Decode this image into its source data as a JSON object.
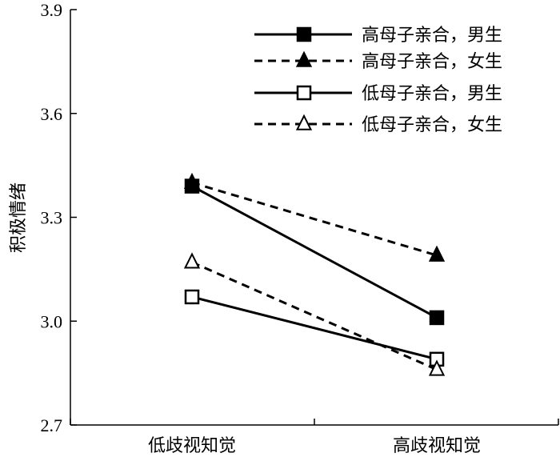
{
  "chart_data": {
    "type": "line",
    "title": "",
    "xlabel": "",
    "ylabel": "积极情绪",
    "categories": [
      "低歧视知觉",
      "高歧视知觉"
    ],
    "ylim": [
      2.7,
      3.9
    ],
    "yticks": [
      "2.7",
      "3.0",
      "3.3",
      "3.6",
      "3.9"
    ],
    "grid": false,
    "legend_position": "top-right",
    "series": [
      {
        "name": "高母子亲合，男生",
        "values": [
          3.39,
          3.01
        ],
        "line": "solid",
        "marker": "square",
        "filled": true
      },
      {
        "name": "高母子亲合，女生",
        "values": [
          3.4,
          3.19
        ],
        "line": "dashed",
        "marker": "triangle",
        "filled": true
      },
      {
        "name": "低母子亲合，男生",
        "values": [
          3.07,
          2.89
        ],
        "line": "solid",
        "marker": "square",
        "filled": false
      },
      {
        "name": "低母子亲合，女生",
        "values": [
          3.17,
          2.86
        ],
        "line": "dashed",
        "marker": "triangle",
        "filled": false
      }
    ]
  }
}
